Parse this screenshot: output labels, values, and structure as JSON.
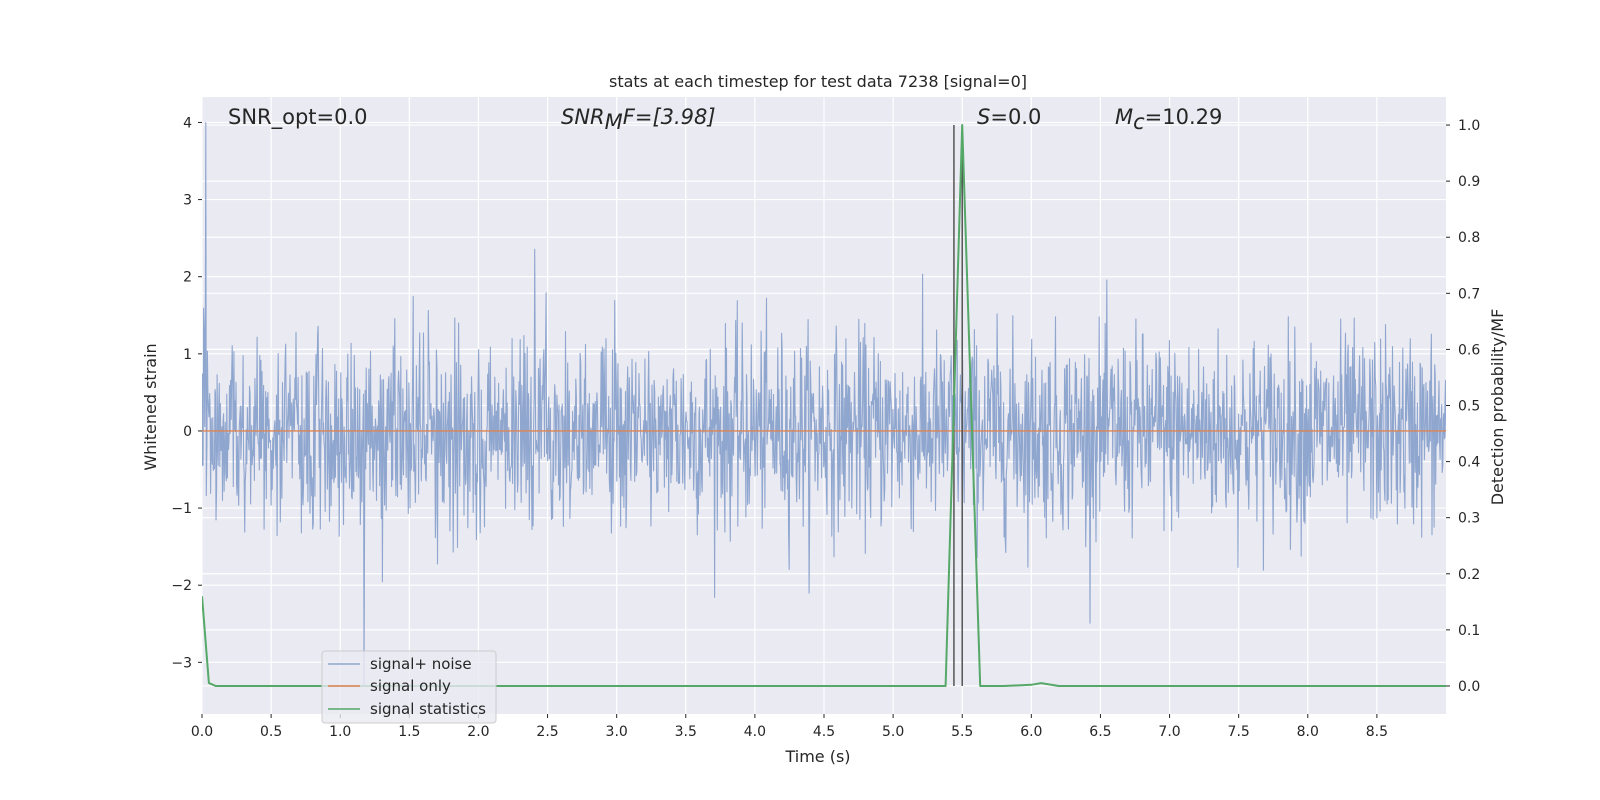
{
  "chart_data": {
    "type": "line",
    "title": "stats at each timestep for test data 7238 [signal=0]",
    "xlabel": "Time (s)",
    "ylabel": "Whitened strain",
    "ylabel_right": "Detection probability/MF",
    "xlim": [
      0.0,
      9.0
    ],
    "ylim": [
      -3.67,
      4.33
    ],
    "ylim_right": [
      -0.05,
      1.05
    ],
    "x_ticks": [
      "0.0",
      "0.5",
      "1.0",
      "1.5",
      "2.0",
      "2.5",
      "3.0",
      "3.5",
      "4.0",
      "4.5",
      "5.0",
      "5.5",
      "6.0",
      "6.5",
      "7.0",
      "7.5",
      "8.0",
      "8.5"
    ],
    "x_tick_values": [
      0,
      0.5,
      1,
      1.5,
      2,
      2.5,
      3,
      3.5,
      4,
      4.5,
      5,
      5.5,
      6,
      6.5,
      7,
      7.5,
      8,
      8.5
    ],
    "y_ticks": [
      "−3",
      "−2",
      "−1",
      "0",
      "1",
      "2",
      "3",
      "4"
    ],
    "y_tick_values": [
      -3,
      -2,
      -1,
      0,
      1,
      2,
      3,
      4
    ],
    "y_ticks_right": [
      "0.0",
      "0.1",
      "0.2",
      "0.3",
      "0.4",
      "0.5",
      "0.6",
      "0.7",
      "0.8",
      "0.9",
      "1.0"
    ],
    "y_tick_values_right": [
      0,
      0.1,
      0.2,
      0.3,
      0.4,
      0.5,
      0.6,
      0.7,
      0.8,
      0.9,
      1.0
    ],
    "grid": true,
    "legend_position": "lower-left",
    "annotations": {
      "snr_opt": "SNR_opt=0.0",
      "snr_mf_main": "SNR",
      "snr_mf_sub": "M",
      "snr_mf_rest": "F=[3.98]",
      "s_main": "S",
      "s_rest": "=0.0",
      "mc_main": "M",
      "mc_sub": "c",
      "mc_rest": "=10.29"
    },
    "vertical_lines": [
      5.44,
      5.5
    ],
    "series": [
      {
        "name": "signal+ noise",
        "axis": "left",
        "color": "#8fa6cf",
        "kind": "noise",
        "noise_std": 0.62,
        "num_points": 2304,
        "peak_annotations": {
          "max": 4.0,
          "min": -3.3
        }
      },
      {
        "name": "signal only",
        "axis": "left",
        "color": "#dd8452",
        "x": [
          0.0,
          9.0
        ],
        "y": [
          0.0,
          0.0
        ]
      },
      {
        "name": "signal statistics",
        "axis": "right",
        "color": "#55a868",
        "x": [
          0.0,
          0.05,
          0.1,
          0.5,
          1.0,
          2.0,
          3.0,
          4.0,
          5.0,
          5.38,
          5.5,
          5.63,
          5.8,
          6.0,
          6.07,
          6.2,
          6.5,
          7.0,
          8.0,
          9.0
        ],
        "y": [
          0.16,
          0.005,
          0.0,
          0.0,
          0.0,
          0.0,
          0.0,
          0.0,
          0.0,
          0.0,
          1.0,
          0.0,
          0.0,
          0.002,
          0.005,
          0.0,
          0.0,
          0.0,
          0.0,
          0.0
        ]
      }
    ]
  }
}
